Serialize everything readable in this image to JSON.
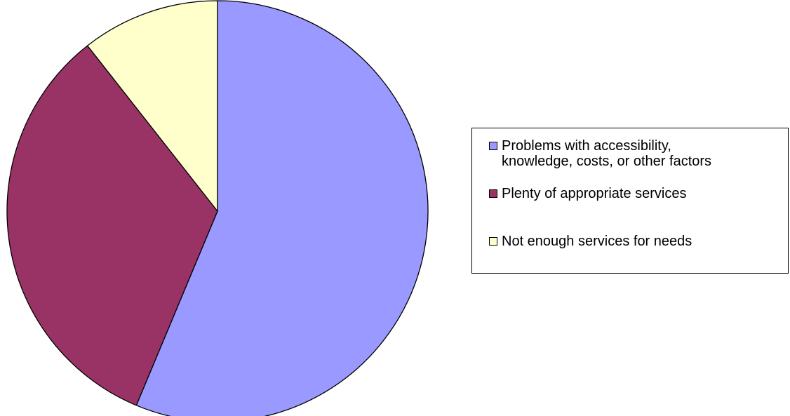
{
  "chart_data": {
    "type": "pie",
    "categories": [
      "Problems with accessibility,\nknowledge, costs, or other factors",
      "Plenty of appropriate services",
      "Not enough services for needs"
    ],
    "values": [
      56.3,
      33.1,
      10.6
    ],
    "colors": [
      "#9999FF",
      "#993366",
      "#FFFFCC"
    ],
    "title": "",
    "legend_position": "right",
    "start_angle_deg": 0,
    "direction": "clockwise"
  }
}
